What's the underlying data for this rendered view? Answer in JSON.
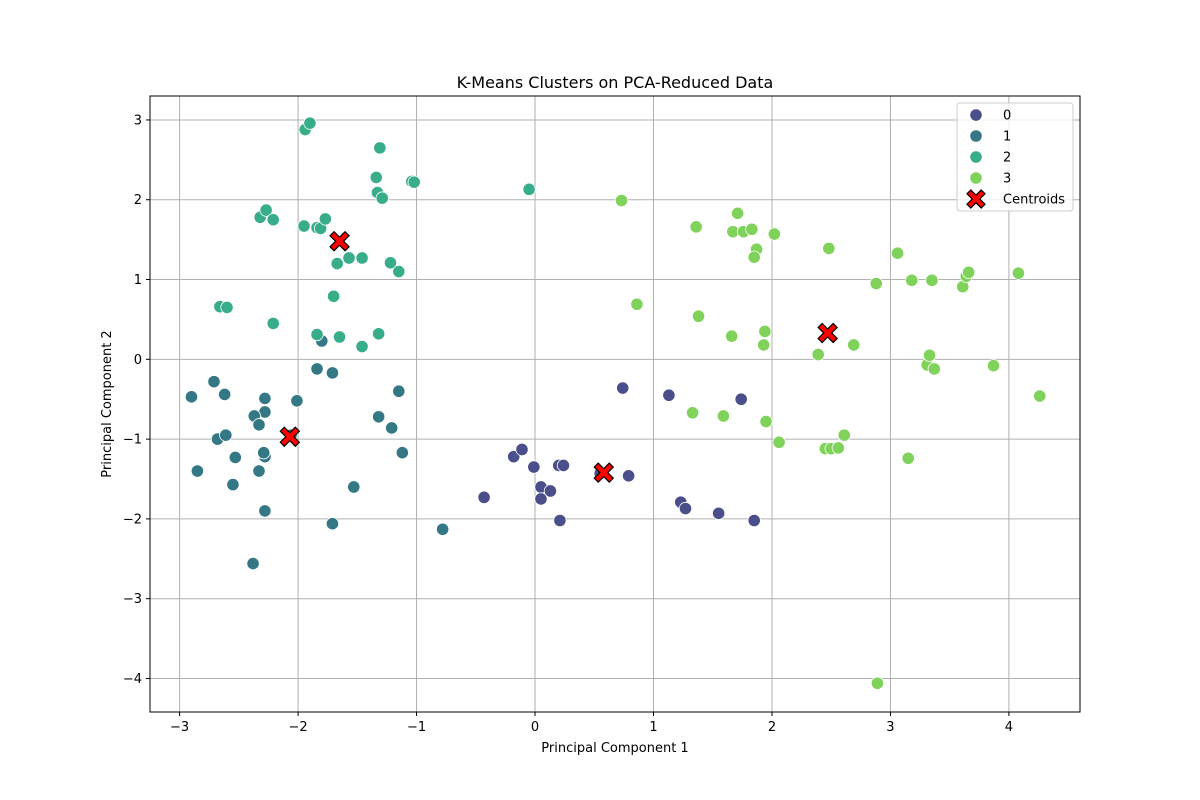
{
  "chart_data": {
    "type": "scatter",
    "title": "K-Means Clusters on PCA-Reduced Data",
    "xlabel": "Principal Component 1",
    "ylabel": "Principal Component 2",
    "xlim": [
      -3.25,
      4.6
    ],
    "ylim": [
      -4.42,
      3.3
    ],
    "xticks": [
      -3,
      -2,
      -1,
      0,
      1,
      2,
      3,
      4
    ],
    "yticks": [
      -4,
      -3,
      -2,
      -1,
      0,
      1,
      2,
      3
    ],
    "grid": true,
    "legend_position": "top-right",
    "series": [
      {
        "name": "0",
        "color": "#4a4e8a",
        "points": [
          [
            0.74,
            -0.36
          ],
          [
            1.13,
            -0.45
          ],
          [
            1.74,
            -0.5
          ],
          [
            -0.18,
            -1.22
          ],
          [
            -0.11,
            -1.13
          ],
          [
            -0.01,
            -1.35
          ],
          [
            0.2,
            -1.33
          ],
          [
            0.24,
            -1.33
          ],
          [
            0.55,
            -1.43
          ],
          [
            0.79,
            -1.46
          ],
          [
            0.05,
            -1.6
          ],
          [
            0.13,
            -1.65
          ],
          [
            0.05,
            -1.75
          ],
          [
            -0.43,
            -1.73
          ],
          [
            1.23,
            -1.79
          ],
          [
            1.27,
            -1.87
          ],
          [
            1.55,
            -1.93
          ],
          [
            1.85,
            -2.02
          ],
          [
            0.21,
            -2.02
          ]
        ]
      },
      {
        "name": "1",
        "color": "#347886",
        "points": [
          [
            -2.9,
            -0.47
          ],
          [
            -2.71,
            -0.28
          ],
          [
            -2.62,
            -0.44
          ],
          [
            -2.28,
            -0.49
          ],
          [
            -2.01,
            -0.52
          ],
          [
            -1.84,
            -0.12
          ],
          [
            -1.71,
            -0.17
          ],
          [
            -1.15,
            -0.4
          ],
          [
            -2.28,
            -0.66
          ],
          [
            -2.37,
            -0.71
          ],
          [
            -2.33,
            -0.82
          ],
          [
            -1.32,
            -0.72
          ],
          [
            -1.21,
            -0.86
          ],
          [
            -2.68,
            -1.0
          ],
          [
            -2.61,
            -0.95
          ],
          [
            -2.28,
            -1.22
          ],
          [
            -2.29,
            -1.17
          ],
          [
            -2.06,
            -0.95
          ],
          [
            -2.53,
            -1.23
          ],
          [
            -2.85,
            -1.4
          ],
          [
            -2.33,
            -1.4
          ],
          [
            -1.12,
            -1.17
          ],
          [
            -2.55,
            -1.57
          ],
          [
            -1.53,
            -1.6
          ],
          [
            -2.28,
            -1.9
          ],
          [
            -1.71,
            -2.06
          ],
          [
            -0.78,
            -2.13
          ],
          [
            -2.38,
            -2.56
          ],
          [
            -1.8,
            0.23
          ]
        ]
      },
      {
        "name": "2",
        "color": "#38ad8a",
        "points": [
          [
            -1.94,
            2.88
          ],
          [
            -1.9,
            2.96
          ],
          [
            -1.31,
            2.65
          ],
          [
            -1.34,
            2.28
          ],
          [
            -1.33,
            2.09
          ],
          [
            -1.29,
            2.02
          ],
          [
            -1.04,
            2.23
          ],
          [
            -1.02,
            2.22
          ],
          [
            -0.05,
            2.13
          ],
          [
            -2.32,
            1.78
          ],
          [
            -2.27,
            1.87
          ],
          [
            -2.21,
            1.75
          ],
          [
            -1.95,
            1.67
          ],
          [
            -1.84,
            1.65
          ],
          [
            -1.81,
            1.64
          ],
          [
            -1.77,
            1.76
          ],
          [
            -1.57,
            1.27
          ],
          [
            -1.46,
            1.27
          ],
          [
            -1.67,
            1.2
          ],
          [
            -1.22,
            1.21
          ],
          [
            -1.15,
            1.1
          ],
          [
            -2.66,
            0.66
          ],
          [
            -2.6,
            0.65
          ],
          [
            -2.21,
            0.45
          ],
          [
            -1.7,
            0.79
          ],
          [
            -1.84,
            0.31
          ],
          [
            -1.65,
            0.28
          ],
          [
            -1.32,
            0.32
          ],
          [
            -1.46,
            0.16
          ]
        ]
      },
      {
        "name": "3",
        "color": "#7fd25a",
        "points": [
          [
            0.73,
            1.99
          ],
          [
            1.36,
            1.66
          ],
          [
            1.71,
            1.83
          ],
          [
            1.67,
            1.6
          ],
          [
            1.76,
            1.6
          ],
          [
            1.83,
            1.63
          ],
          [
            2.02,
            1.57
          ],
          [
            1.87,
            1.38
          ],
          [
            1.85,
            1.28
          ],
          [
            2.48,
            1.39
          ],
          [
            3.06,
            1.33
          ],
          [
            2.88,
            0.95
          ],
          [
            3.18,
            0.99
          ],
          [
            3.35,
            0.99
          ],
          [
            3.61,
            0.91
          ],
          [
            3.64,
            1.04
          ],
          [
            3.66,
            1.09
          ],
          [
            4.08,
            1.08
          ],
          [
            0.86,
            0.69
          ],
          [
            1.38,
            0.54
          ],
          [
            1.66,
            0.29
          ],
          [
            1.94,
            0.35
          ],
          [
            1.93,
            0.18
          ],
          [
            2.39,
            0.06
          ],
          [
            2.69,
            0.18
          ],
          [
            3.31,
            -0.07
          ],
          [
            3.33,
            0.05
          ],
          [
            3.37,
            -0.12
          ],
          [
            3.87,
            -0.08
          ],
          [
            4.26,
            -0.46
          ],
          [
            1.33,
            -0.67
          ],
          [
            1.59,
            -0.71
          ],
          [
            1.95,
            -0.78
          ],
          [
            2.06,
            -1.04
          ],
          [
            2.61,
            -0.95
          ],
          [
            2.45,
            -1.12
          ],
          [
            2.5,
            -1.12
          ],
          [
            2.56,
            -1.11
          ],
          [
            3.15,
            -1.24
          ],
          [
            2.89,
            -4.06
          ]
        ]
      }
    ],
    "centroids": {
      "name": "Centroids",
      "color": "#ff0000",
      "points": [
        [
          -1.65,
          1.48
        ],
        [
          -2.07,
          -0.97
        ],
        [
          0.58,
          -1.42
        ],
        [
          2.47,
          0.33
        ]
      ]
    }
  }
}
